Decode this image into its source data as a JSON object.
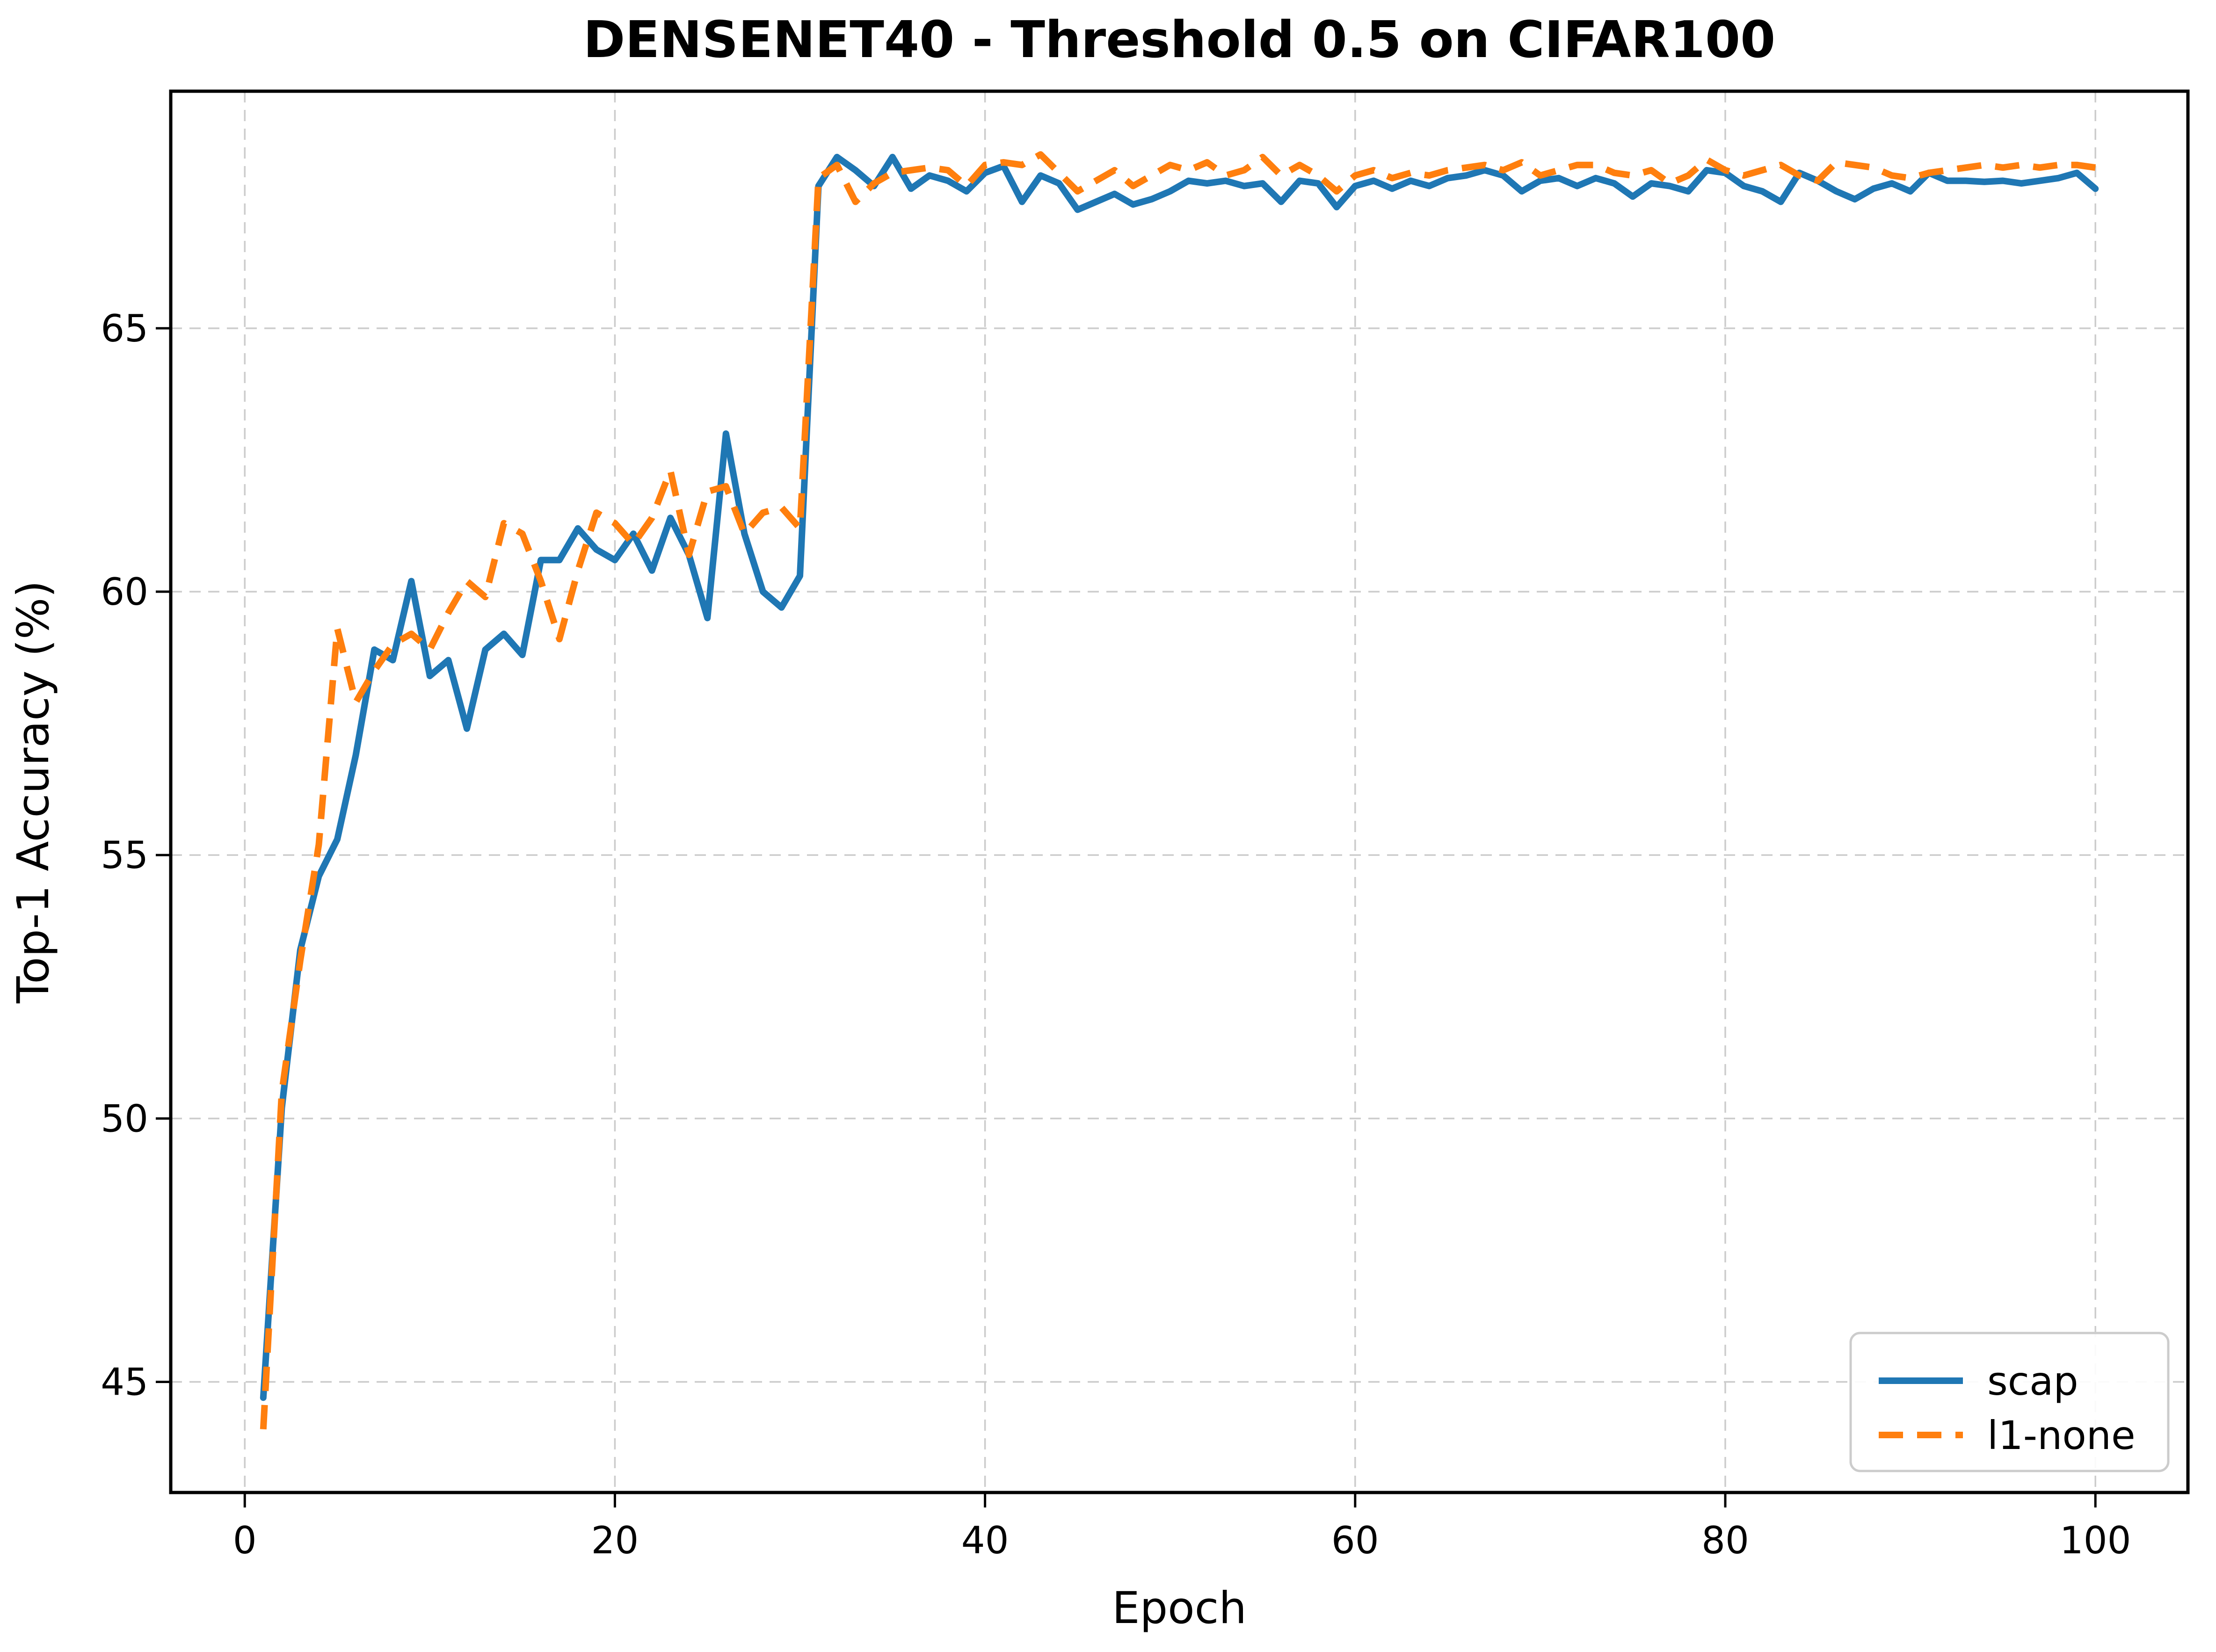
{
  "figure": {
    "title": "DENSENET40 - Threshold 0.5 on CIFAR100",
    "background_color": "#ffffff",
    "grid_color": "#cccccc",
    "spine_color": "#000000",
    "legend": {
      "position": "lower right",
      "entries": [
        {
          "label": "scap",
          "color": "#1f77b4",
          "style": "solid"
        },
        {
          "label": "l1-none",
          "color": "#ff7f0e",
          "style": "dashed"
        }
      ]
    }
  },
  "chart_data": {
    "type": "line",
    "title": "DENSENET40 - Threshold 0.5 on CIFAR100",
    "xlabel": "Epoch",
    "ylabel": "Top-1 Accuracy (%)",
    "x_ticks": [
      0,
      20,
      40,
      60,
      80,
      100
    ],
    "y_ticks": [
      45,
      50,
      55,
      60,
      65
    ],
    "xlim": [
      -4,
      105
    ],
    "ylim": [
      42.9,
      69.5
    ],
    "grid": true,
    "grid_style": "dashed",
    "legend_position": "lower right",
    "x": [
      1,
      2,
      3,
      4,
      5,
      6,
      7,
      8,
      9,
      10,
      11,
      12,
      13,
      14,
      15,
      16,
      17,
      18,
      19,
      20,
      21,
      22,
      23,
      24,
      25,
      26,
      27,
      28,
      29,
      30,
      31,
      32,
      33,
      34,
      35,
      36,
      37,
      38,
      39,
      40,
      41,
      42,
      43,
      44,
      45,
      46,
      47,
      48,
      49,
      50,
      51,
      52,
      53,
      54,
      55,
      56,
      57,
      58,
      59,
      60,
      61,
      62,
      63,
      64,
      65,
      66,
      67,
      68,
      69,
      70,
      71,
      72,
      73,
      74,
      75,
      76,
      77,
      78,
      79,
      80,
      81,
      82,
      83,
      84,
      85,
      86,
      87,
      88,
      89,
      90,
      91,
      92,
      93,
      94,
      95,
      96,
      97,
      98,
      99,
      100
    ],
    "series": [
      {
        "name": "scap",
        "color": "#1f77b4",
        "style": "solid",
        "values": [
          44.7,
          50.2,
          53.2,
          54.6,
          55.3,
          56.9,
          58.9,
          58.7,
          60.2,
          58.4,
          58.7,
          57.4,
          58.9,
          59.2,
          58.8,
          60.6,
          60.6,
          61.2,
          60.8,
          60.6,
          61.1,
          60.4,
          61.4,
          60.7,
          59.5,
          63.0,
          61.1,
          60.0,
          59.7,
          60.3,
          67.7,
          68.25,
          68.0,
          67.7,
          68.25,
          67.65,
          67.9,
          67.8,
          67.6,
          67.95,
          68.08,
          67.4,
          67.9,
          67.75,
          67.25,
          67.4,
          67.55,
          67.35,
          67.45,
          67.6,
          67.8,
          67.75,
          67.8,
          67.7,
          67.75,
          67.4,
          67.8,
          67.75,
          67.3,
          67.7,
          67.8,
          67.65,
          67.8,
          67.7,
          67.85,
          67.9,
          68.0,
          67.9,
          67.6,
          67.8,
          67.85,
          67.7,
          67.85,
          67.75,
          67.5,
          67.75,
          67.7,
          67.6,
          68.0,
          67.95,
          67.7,
          67.6,
          67.4,
          67.95,
          67.8,
          67.6,
          67.45,
          67.65,
          67.75,
          67.6,
          67.95,
          67.8,
          67.8,
          67.78,
          67.8,
          67.75,
          67.8,
          67.85,
          67.95,
          67.65
        ]
      },
      {
        "name": "l1-none",
        "color": "#ff7f0e",
        "style": "dashed",
        "values": [
          44.1,
          50.5,
          53.0,
          55.2,
          59.3,
          57.9,
          58.5,
          59.0,
          59.2,
          58.9,
          59.6,
          60.2,
          59.9,
          61.3,
          61.1,
          60.2,
          59.1,
          60.4,
          61.5,
          61.3,
          60.9,
          61.4,
          62.3,
          60.7,
          61.9,
          62.0,
          61.1,
          61.5,
          61.6,
          61.2,
          67.85,
          68.1,
          67.4,
          67.75,
          67.95,
          68.0,
          68.05,
          68.0,
          67.7,
          68.1,
          68.15,
          68.1,
          68.3,
          67.95,
          67.6,
          67.8,
          68.0,
          67.7,
          67.9,
          68.1,
          68.0,
          68.15,
          67.9,
          68.0,
          68.25,
          67.9,
          68.1,
          67.9,
          67.6,
          67.9,
          68.0,
          67.85,
          67.95,
          67.9,
          68.0,
          68.05,
          68.1,
          68.0,
          68.15,
          67.9,
          68.0,
          68.1,
          68.1,
          67.95,
          67.9,
          68.0,
          67.75,
          67.9,
          68.2,
          68.0,
          67.9,
          68.0,
          68.1,
          67.9,
          67.8,
          68.15,
          68.1,
          68.05,
          67.9,
          67.85,
          67.95,
          68.0,
          68.05,
          68.1,
          68.05,
          68.1,
          68.05,
          68.1,
          68.1,
          68.05
        ]
      }
    ]
  }
}
